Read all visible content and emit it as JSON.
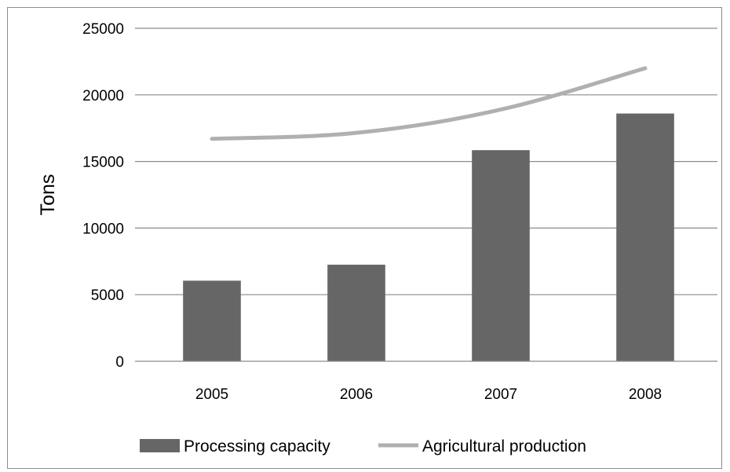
{
  "chart_data": {
    "type": "bar",
    "categories": [
      "2005",
      "2006",
      "2007",
      "2008"
    ],
    "series": [
      {
        "name": "Processing capacity",
        "type": "bar",
        "values": [
          6050,
          7250,
          15850,
          18600
        ],
        "color": "#666666"
      },
      {
        "name": "Agricultural production",
        "type": "line",
        "values": [
          16700,
          17150,
          18900,
          22000
        ],
        "color": "#b0b0b0"
      }
    ],
    "ylabel": "Tons",
    "xlabel": "",
    "ylim": [
      0,
      25000
    ],
    "yticks": [
      "0",
      "5000",
      "10000",
      "15000",
      "20000",
      "25000"
    ],
    "grid": true,
    "legend_position": "bottom"
  }
}
